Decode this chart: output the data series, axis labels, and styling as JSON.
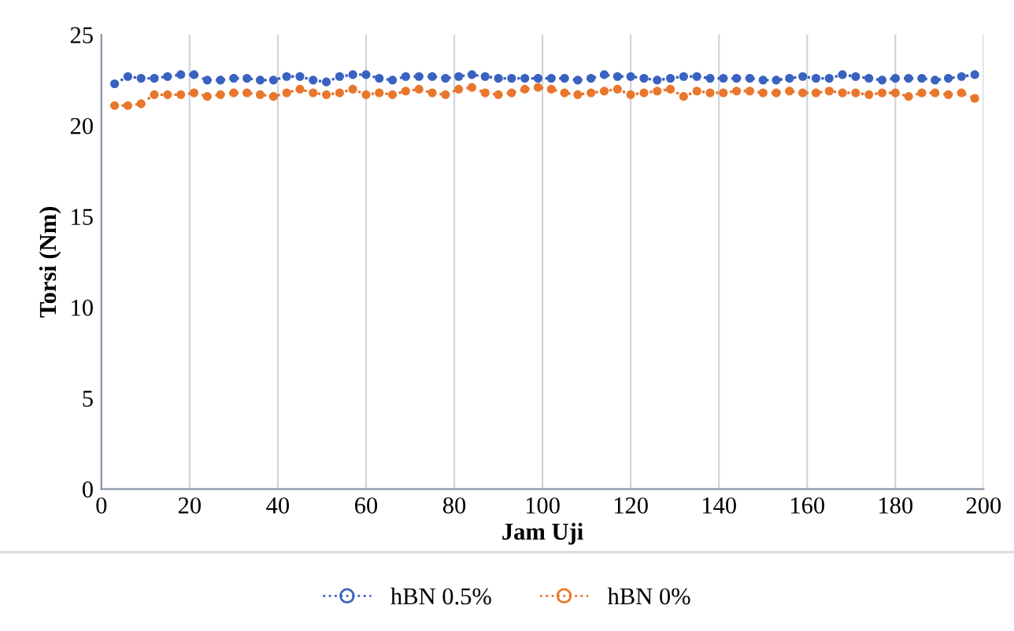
{
  "chart_data": {
    "type": "line",
    "xlabel": "Jam Uji",
    "ylabel": "Torsi (Nm)",
    "x": [
      3,
      6,
      9,
      12,
      15,
      18,
      21,
      24,
      27,
      30,
      33,
      36,
      39,
      42,
      45,
      48,
      51,
      54,
      57,
      60,
      63,
      66,
      69,
      72,
      75,
      78,
      81,
      84,
      87,
      90,
      93,
      96,
      99,
      102,
      105,
      108,
      111,
      114,
      117,
      120,
      123,
      126,
      129,
      132,
      135,
      138,
      141,
      144,
      147,
      150,
      153,
      156,
      159,
      162,
      165,
      168,
      171,
      174,
      177,
      180,
      183,
      186,
      189,
      192,
      195,
      198
    ],
    "series": [
      {
        "name": "hBN 0.5%",
        "color": "#3a62c0",
        "values": [
          22.3,
          22.7,
          22.6,
          22.6,
          22.7,
          22.8,
          22.8,
          22.5,
          22.5,
          22.6,
          22.6,
          22.5,
          22.5,
          22.7,
          22.7,
          22.5,
          22.4,
          22.7,
          22.8,
          22.8,
          22.6,
          22.5,
          22.7,
          22.7,
          22.7,
          22.6,
          22.7,
          22.8,
          22.7,
          22.6,
          22.6,
          22.6,
          22.6,
          22.6,
          22.6,
          22.5,
          22.6,
          22.8,
          22.7,
          22.7,
          22.6,
          22.5,
          22.6,
          22.7,
          22.7,
          22.6,
          22.6,
          22.6,
          22.6,
          22.5,
          22.5,
          22.6,
          22.7,
          22.6,
          22.6,
          22.8,
          22.7,
          22.6,
          22.5,
          22.6,
          22.6,
          22.6,
          22.5,
          22.6,
          22.7,
          22.8
        ]
      },
      {
        "name": "hBN 0%",
        "color": "#e8772e",
        "values": [
          21.1,
          21.1,
          21.2,
          21.7,
          21.7,
          21.7,
          21.8,
          21.6,
          21.7,
          21.8,
          21.8,
          21.7,
          21.6,
          21.8,
          22.0,
          21.8,
          21.7,
          21.8,
          22.0,
          21.7,
          21.8,
          21.7,
          21.9,
          22.0,
          21.8,
          21.7,
          22.0,
          22.1,
          21.8,
          21.7,
          21.8,
          22.0,
          22.1,
          22.0,
          21.8,
          21.7,
          21.8,
          21.9,
          22.0,
          21.7,
          21.8,
          21.9,
          22.0,
          21.6,
          21.9,
          21.8,
          21.8,
          21.9,
          21.9,
          21.8,
          21.8,
          21.9,
          21.8,
          21.8,
          21.9,
          21.8,
          21.8,
          21.7,
          21.8,
          21.8,
          21.6,
          21.8,
          21.8,
          21.7,
          21.8,
          21.5
        ]
      }
    ],
    "xlim": [
      0,
      200
    ],
    "xticks": [
      0,
      20,
      40,
      60,
      80,
      100,
      120,
      140,
      160,
      180,
      200
    ],
    "ylim": [
      0,
      25
    ],
    "yticks": [
      0,
      5,
      10,
      15,
      20,
      25
    ],
    "grid": "x",
    "legend": "bottom",
    "marker": "circle",
    "line_style": "dotted"
  }
}
